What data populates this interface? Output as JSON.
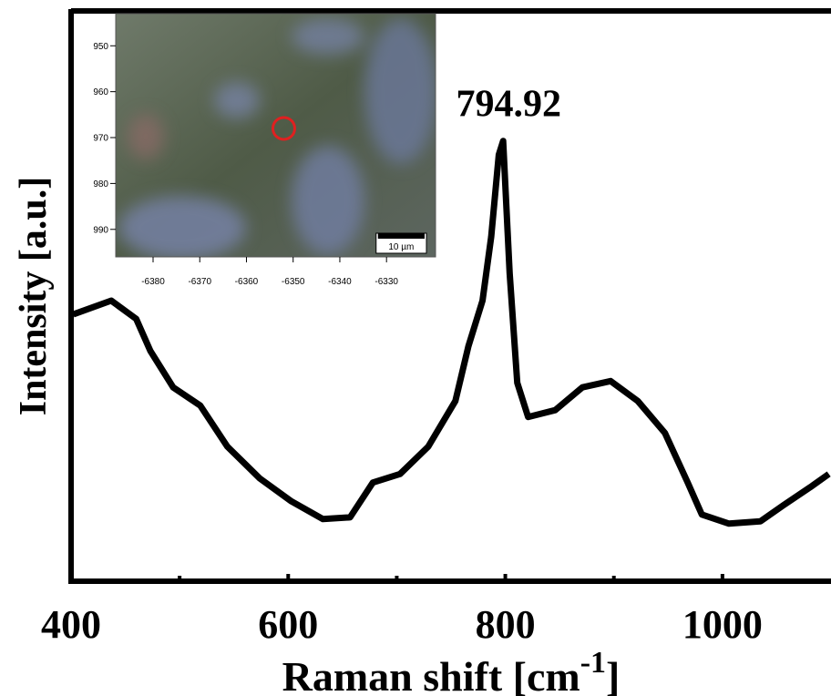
{
  "chart_data": [
    {
      "type": "line",
      "xlabel": {
        "text": "Raman shift [cm",
        "superscript": "-1",
        "suffix": "]"
      },
      "ylabel": "Intensity [a.u.]",
      "annotation": "794.92",
      "x": [
        402,
        437,
        460,
        473,
        494,
        519,
        544,
        574,
        603,
        632,
        657,
        678,
        703,
        729,
        754,
        766,
        779,
        787,
        794,
        798,
        804,
        811,
        821,
        846,
        871,
        897,
        922,
        947,
        968,
        981,
        1006,
        1035,
        1056,
        1081,
        1098
      ],
      "series": [
        {
          "color": "#000000",
          "values": [
            46.8,
            49.2,
            46,
            40.4,
            34,
            30.8,
            23.6,
            18,
            14,
            10.9,
            11.2,
            17.3,
            18.8,
            23.6,
            31.6,
            41.2,
            49.2,
            60.4,
            74.8,
            77.2,
            54,
            34.8,
            28.8,
            30,
            34,
            35.1,
            31.6,
            26,
            17.3,
            11.7,
            10.1,
            10.5,
            13.3,
            16.5,
            18.8
          ]
        }
      ],
      "xlim": [
        400,
        1100
      ],
      "xticks": [
        400,
        600,
        800,
        1000
      ],
      "xminor": [
        500,
        700,
        900
      ],
      "ylim": [
        0,
        100
      ]
    },
    {
      "type": "image",
      "xlim": [
        -6388,
        -6319.5
      ],
      "xticks": [
        -6380,
        -6370,
        -6360,
        -6350,
        -6340,
        -6330
      ],
      "ylim": [
        943,
        996
      ],
      "yticks": [
        950,
        960,
        970,
        980,
        990
      ],
      "marker": {
        "x": -6352,
        "y": 968,
        "color": "#e02020"
      },
      "scale_bar": {
        "label": "10 µm",
        "length": 10
      }
    }
  ]
}
